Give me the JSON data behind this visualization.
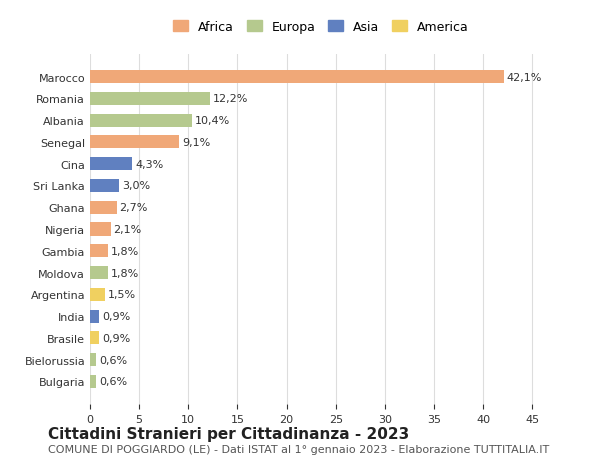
{
  "countries": [
    "Marocco",
    "Romania",
    "Albania",
    "Senegal",
    "Cina",
    "Sri Lanka",
    "Ghana",
    "Nigeria",
    "Gambia",
    "Moldova",
    "Argentina",
    "India",
    "Brasile",
    "Bielorussia",
    "Bulgaria"
  ],
  "values": [
    42.1,
    12.2,
    10.4,
    9.1,
    4.3,
    3.0,
    2.7,
    2.1,
    1.8,
    1.8,
    1.5,
    0.9,
    0.9,
    0.6,
    0.6
  ],
  "labels": [
    "42,1%",
    "12,2%",
    "10,4%",
    "9,1%",
    "4,3%",
    "3,0%",
    "2,7%",
    "2,1%",
    "1,8%",
    "1,8%",
    "1,5%",
    "0,9%",
    "0,9%",
    "0,6%",
    "0,6%"
  ],
  "continents": [
    "Africa",
    "Europa",
    "Europa",
    "Africa",
    "Asia",
    "Asia",
    "Africa",
    "Africa",
    "Africa",
    "Europa",
    "America",
    "Asia",
    "America",
    "Europa",
    "Europa"
  ],
  "continent_colors": {
    "Africa": "#F0A878",
    "Europa": "#B5C98E",
    "Asia": "#6080C0",
    "America": "#F0D060"
  },
  "legend_order": [
    "Africa",
    "Europa",
    "Asia",
    "America"
  ],
  "xlim": [
    0,
    47
  ],
  "xticks": [
    0,
    5,
    10,
    15,
    20,
    25,
    30,
    35,
    40,
    45
  ],
  "title": "Cittadini Stranieri per Cittadinanza - 2023",
  "subtitle": "COMUNE DI POGGIARDO (LE) - Dati ISTAT al 1° gennaio 2023 - Elaborazione TUTTITALIA.IT",
  "background_color": "#ffffff",
  "grid_color": "#dddddd",
  "bar_height": 0.6,
  "title_fontsize": 11,
  "subtitle_fontsize": 8,
  "label_fontsize": 8,
  "tick_fontsize": 8,
  "legend_fontsize": 9
}
